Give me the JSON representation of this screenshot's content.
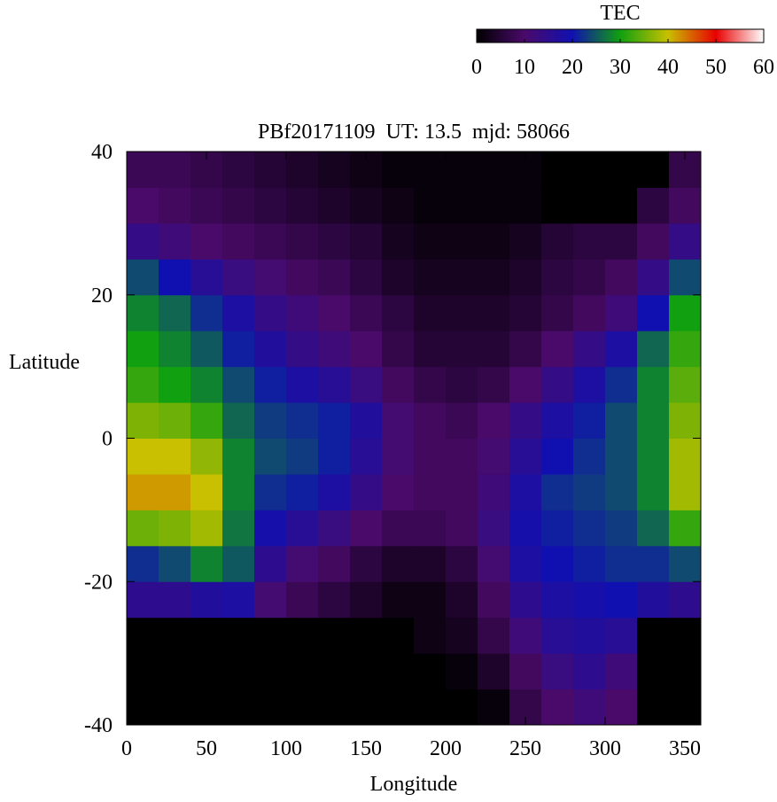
{
  "chart_data": {
    "type": "heatmap",
    "title": "PBf20171109  UT: 13.5  mjd: 58066",
    "x_label": "Longitude",
    "y_label": "Latitude",
    "colorbar_label": "TEC",
    "x": [
      10,
      30,
      50,
      70,
      90,
      110,
      130,
      150,
      170,
      190,
      210,
      230,
      250,
      270,
      290,
      310,
      330,
      350
    ],
    "y": [
      -37.5,
      -32.5,
      -27.5,
      -22.5,
      -17.5,
      -12.5,
      -7.5,
      -2.5,
      2.5,
      7.5,
      12.5,
      17.5,
      22.5,
      27.5,
      32.5,
      37.5
    ],
    "values": [
      [
        0,
        0,
        0,
        0,
        0,
        0,
        0,
        0,
        0,
        0,
        0,
        1,
        7,
        10,
        12,
        10,
        0,
        0
      ],
      [
        0,
        0,
        0,
        0,
        0,
        0,
        0,
        0,
        0,
        0,
        1,
        4,
        9,
        13,
        15,
        12,
        0,
        0
      ],
      [
        0,
        0,
        0,
        0,
        0,
        0,
        0,
        0,
        0,
        2,
        3,
        7,
        12,
        16,
        17,
        16,
        0,
        0
      ],
      [
        15,
        15,
        17,
        18,
        11,
        8,
        6,
        4,
        2,
        2,
        4,
        9,
        15,
        18,
        19,
        20,
        17,
        15
      ],
      [
        22,
        24,
        28,
        25,
        15,
        11,
        9,
        6,
        4,
        4,
        6,
        11,
        18,
        20,
        21,
        22,
        22,
        24
      ],
      [
        35,
        36,
        38,
        27,
        19,
        16,
        13,
        10,
        8,
        8,
        9,
        13,
        19,
        21,
        22,
        23,
        26,
        32
      ],
      [
        42,
        42,
        40,
        28,
        22,
        21,
        18,
        14,
        10,
        9,
        9,
        12,
        18,
        22,
        23,
        24,
        28,
        38
      ],
      [
        40,
        40,
        37,
        28,
        24,
        23,
        21,
        16,
        11,
        9,
        9,
        11,
        16,
        20,
        22,
        24,
        28,
        38
      ],
      [
        36,
        35,
        32,
        26,
        23,
        22,
        21,
        17,
        11,
        9,
        8,
        10,
        14,
        18,
        21,
        24,
        28,
        36
      ],
      [
        32,
        30,
        28,
        24,
        21,
        18,
        16,
        13,
        9,
        7,
        6,
        7,
        10,
        14,
        18,
        22,
        28,
        34
      ],
      [
        30,
        28,
        25,
        21,
        17,
        14,
        12,
        10,
        7,
        5,
        5,
        5,
        7,
        10,
        14,
        18,
        26,
        32
      ],
      [
        28,
        26,
        22,
        18,
        14,
        12,
        10,
        8,
        6,
        4,
        4,
        4,
        5,
        7,
        9,
        12,
        20,
        30
      ],
      [
        24,
        20,
        16,
        13,
        11,
        9,
        8,
        6,
        4,
        3,
        3,
        3,
        4,
        6,
        7,
        9,
        14,
        24
      ],
      [
        14,
        12,
        10,
        9,
        8,
        7,
        6,
        5,
        3,
        2,
        2,
        2,
        3,
        5,
        6,
        6,
        9,
        14
      ],
      [
        10,
        9,
        8,
        7,
        6,
        5,
        4,
        3,
        2,
        1,
        1,
        1,
        1,
        0,
        0,
        0,
        6,
        9
      ],
      [
        8,
        8,
        7,
        6,
        5,
        4,
        3,
        2,
        1,
        1,
        1,
        1,
        1,
        0,
        0,
        0,
        0,
        7
      ]
    ],
    "xlim": [
      0,
      360
    ],
    "xticks": [
      0,
      50,
      100,
      150,
      200,
      250,
      300,
      350
    ],
    "ylim": [
      -40,
      40
    ],
    "yticks": [
      -40,
      -20,
      0,
      20,
      40
    ],
    "clim": [
      0,
      60
    ],
    "cticks": [
      0,
      10,
      20,
      30,
      40,
      50,
      60
    ],
    "colorscale": [
      "#000000",
      "#4a0a6a",
      "#1010b0",
      "#10a010",
      "#c8c000",
      "#e80000",
      "#ffffff"
    ]
  }
}
